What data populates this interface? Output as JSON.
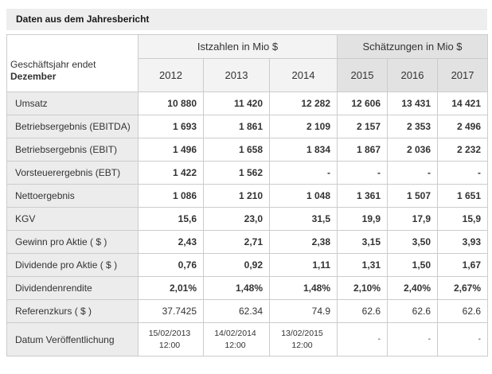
{
  "title": "Daten aus dem Jahresbericht",
  "table": {
    "corner_line1": "Geschäftsjahr endet",
    "corner_line2": "Dezember",
    "group_headers": [
      {
        "label": "Istzahlen in Mio $",
        "span": 3
      },
      {
        "label": "Schätzungen in Mio $",
        "span": 3
      }
    ],
    "years": [
      "2012",
      "2013",
      "2014",
      "2015",
      "2016",
      "2017"
    ],
    "rows": [
      {
        "label": "Umsatz",
        "bold": true,
        "values": [
          "10 880",
          "11 420",
          "12 282",
          "12 606",
          "13 431",
          "14 421"
        ]
      },
      {
        "label": "Betriebsergebnis (EBITDA)",
        "bold": true,
        "values": [
          "1 693",
          "1 861",
          "2 109",
          "2 157",
          "2 353",
          "2 496"
        ]
      },
      {
        "label": "Betriebsergebnis (EBIT)",
        "bold": true,
        "values": [
          "1 496",
          "1 658",
          "1 834",
          "1 867",
          "2 036",
          "2 232"
        ]
      },
      {
        "label": "Vorsteuerergebnis (EBT)",
        "bold": true,
        "values": [
          "1 422",
          "1 562",
          "-",
          "-",
          "-",
          "-"
        ]
      },
      {
        "label": "Nettoergebnis",
        "bold": true,
        "values": [
          "1 086",
          "1 210",
          "1 048",
          "1 361",
          "1 507",
          "1 651"
        ]
      },
      {
        "label": "KGV",
        "bold": true,
        "values": [
          "15,6",
          "23,0",
          "31,5",
          "19,9",
          "17,9",
          "15,9"
        ]
      },
      {
        "label": "Gewinn pro Aktie ( $ )",
        "bold": true,
        "values": [
          "2,43",
          "2,71",
          "2,38",
          "3,15",
          "3,50",
          "3,93"
        ]
      },
      {
        "label": "Dividende pro Aktie ( $ )",
        "bold": true,
        "values": [
          "0,76",
          "0,92",
          "1,11",
          "1,31",
          "1,50",
          "1,67"
        ]
      },
      {
        "label": "Dividendenrendite",
        "bold": true,
        "values": [
          "2,01%",
          "1,48%",
          "1,48%",
          "2,10%",
          "2,40%",
          "2,67%"
        ]
      },
      {
        "label": "Referenzkurs ( $ )",
        "bold": false,
        "values": [
          "37.7425",
          "62.34",
          "74.9",
          "62.6",
          "62.6",
          "62.6"
        ]
      },
      {
        "label": "Datum Veröffentlichung",
        "bold": false,
        "values": [
          "15/02/2013\n12:00",
          "14/02/2014\n12:00",
          "13/02/2015\n12:00",
          "-",
          "-",
          "-"
        ]
      }
    ]
  },
  "colors": {
    "title_bar_bg": "#eeeeee",
    "actuals_header_bg": "#f3f3f3",
    "estimates_header_bg": "#e2e2e2",
    "row_label_bg": "#ececec",
    "cell_bg": "#ffffff",
    "border": "#cccccc",
    "text": "#333333"
  }
}
